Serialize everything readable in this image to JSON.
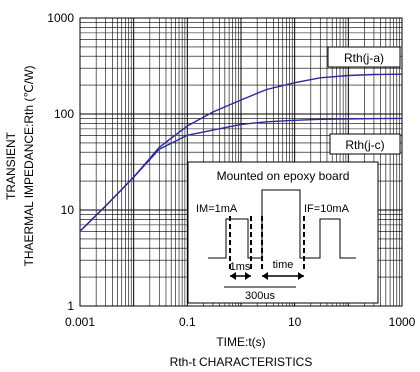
{
  "chart_data": {
    "type": "line",
    "title": "Rth-t CHARACTERISTICS",
    "xlabel": "TIME:t(s)",
    "ylabel": "THAERMAL IMPEDANCE:Rth (℃/W)",
    "ylabel_prefix": "TRANSIENT",
    "x_scale": "log",
    "y_scale": "log",
    "xlim": [
      0.001,
      1000
    ],
    "ylim": [
      1,
      1000
    ],
    "x_ticks": [
      "0.001",
      "0.1",
      "10",
      "1000"
    ],
    "y_ticks": [
      "1",
      "10",
      "100",
      "1000"
    ],
    "grid": true,
    "series": [
      {
        "name": "Rth(j-a)",
        "color": "#2a2aa0",
        "points": [
          [
            0.001,
            6
          ],
          [
            0.003,
            11
          ],
          [
            0.01,
            22
          ],
          [
            0.03,
            45
          ],
          [
            0.1,
            75
          ],
          [
            0.3,
            105
          ],
          [
            1,
            140
          ],
          [
            3,
            180
          ],
          [
            10,
            212
          ],
          [
            30,
            238
          ],
          [
            100,
            252
          ],
          [
            300,
            258
          ],
          [
            1000,
            260
          ]
        ]
      },
      {
        "name": "Rth(j-c)",
        "color": "#2a2aa0",
        "points": [
          [
            0.001,
            6
          ],
          [
            0.003,
            11
          ],
          [
            0.01,
            22
          ],
          [
            0.03,
            43
          ],
          [
            0.1,
            60
          ],
          [
            0.3,
            68
          ],
          [
            1,
            78
          ],
          [
            3,
            83
          ],
          [
            10,
            86
          ],
          [
            30,
            88
          ],
          [
            100,
            89
          ],
          [
            1000,
            90
          ]
        ]
      }
    ],
    "inset": {
      "title": "Mounted on epoxy board",
      "im_label": "IM=1mA",
      "if_label": "IF=10mA",
      "t1_label": "1ms",
      "time_label": "time",
      "period_label": "300us"
    }
  }
}
